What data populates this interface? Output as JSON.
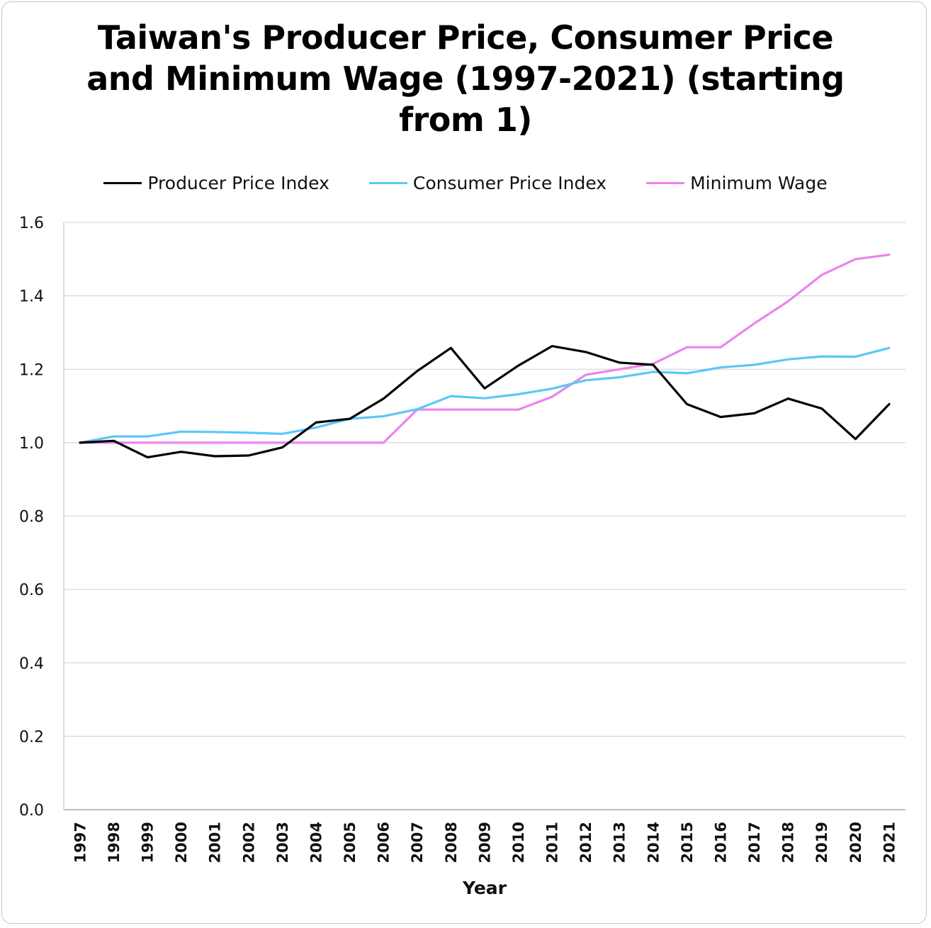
{
  "chart_data": {
    "type": "line",
    "title": "Taiwan's Producer Price, Consumer Price and Minimum Wage (1997-2021) (starting from 1)",
    "xlabel": "Year",
    "ylabel": "",
    "ylim": [
      0,
      1.6
    ],
    "yticks": [
      "0.0",
      "0.2",
      "0.4",
      "0.6",
      "0.8",
      "1.0",
      "1.2",
      "1.4",
      "1.6"
    ],
    "x": [
      "1997",
      "1998",
      "1999",
      "2000",
      "2001",
      "2002",
      "2003",
      "2004",
      "2005",
      "2006",
      "2007",
      "2008",
      "2009",
      "2010",
      "2011",
      "2012",
      "2013",
      "2014",
      "2015",
      "2016",
      "2017",
      "2018",
      "2019",
      "2020",
      "2021"
    ],
    "legend_position": "top",
    "grid": true,
    "series": [
      {
        "name": "Producer Price Index",
        "color": "#000000",
        "values": [
          1.0,
          1.005,
          0.96,
          0.975,
          0.963,
          0.965,
          0.987,
          1.055,
          1.065,
          1.12,
          1.195,
          1.258,
          1.148,
          1.21,
          1.263,
          1.247,
          1.218,
          1.212,
          1.105,
          1.07,
          1.08,
          1.12,
          1.093,
          1.01,
          1.105
        ]
      },
      {
        "name": "Consumer Price Index",
        "color": "#5bc8f5",
        "values": [
          1.0,
          1.017,
          1.017,
          1.03,
          1.029,
          1.027,
          1.024,
          1.041,
          1.065,
          1.072,
          1.091,
          1.127,
          1.121,
          1.132,
          1.147,
          1.17,
          1.178,
          1.193,
          1.189,
          1.205,
          1.212,
          1.227,
          1.235,
          1.234,
          1.258
        ]
      },
      {
        "name": "Minimum Wage",
        "color": "#ee82ee",
        "values": [
          1.0,
          1.0,
          1.0,
          1.0,
          1.0,
          1.0,
          1.0,
          1.0,
          1.0,
          1.0,
          1.09,
          1.09,
          1.09,
          1.09,
          1.125,
          1.185,
          1.2,
          1.215,
          1.26,
          1.26,
          1.325,
          1.385,
          1.457,
          1.5,
          1.512
        ]
      }
    ]
  }
}
